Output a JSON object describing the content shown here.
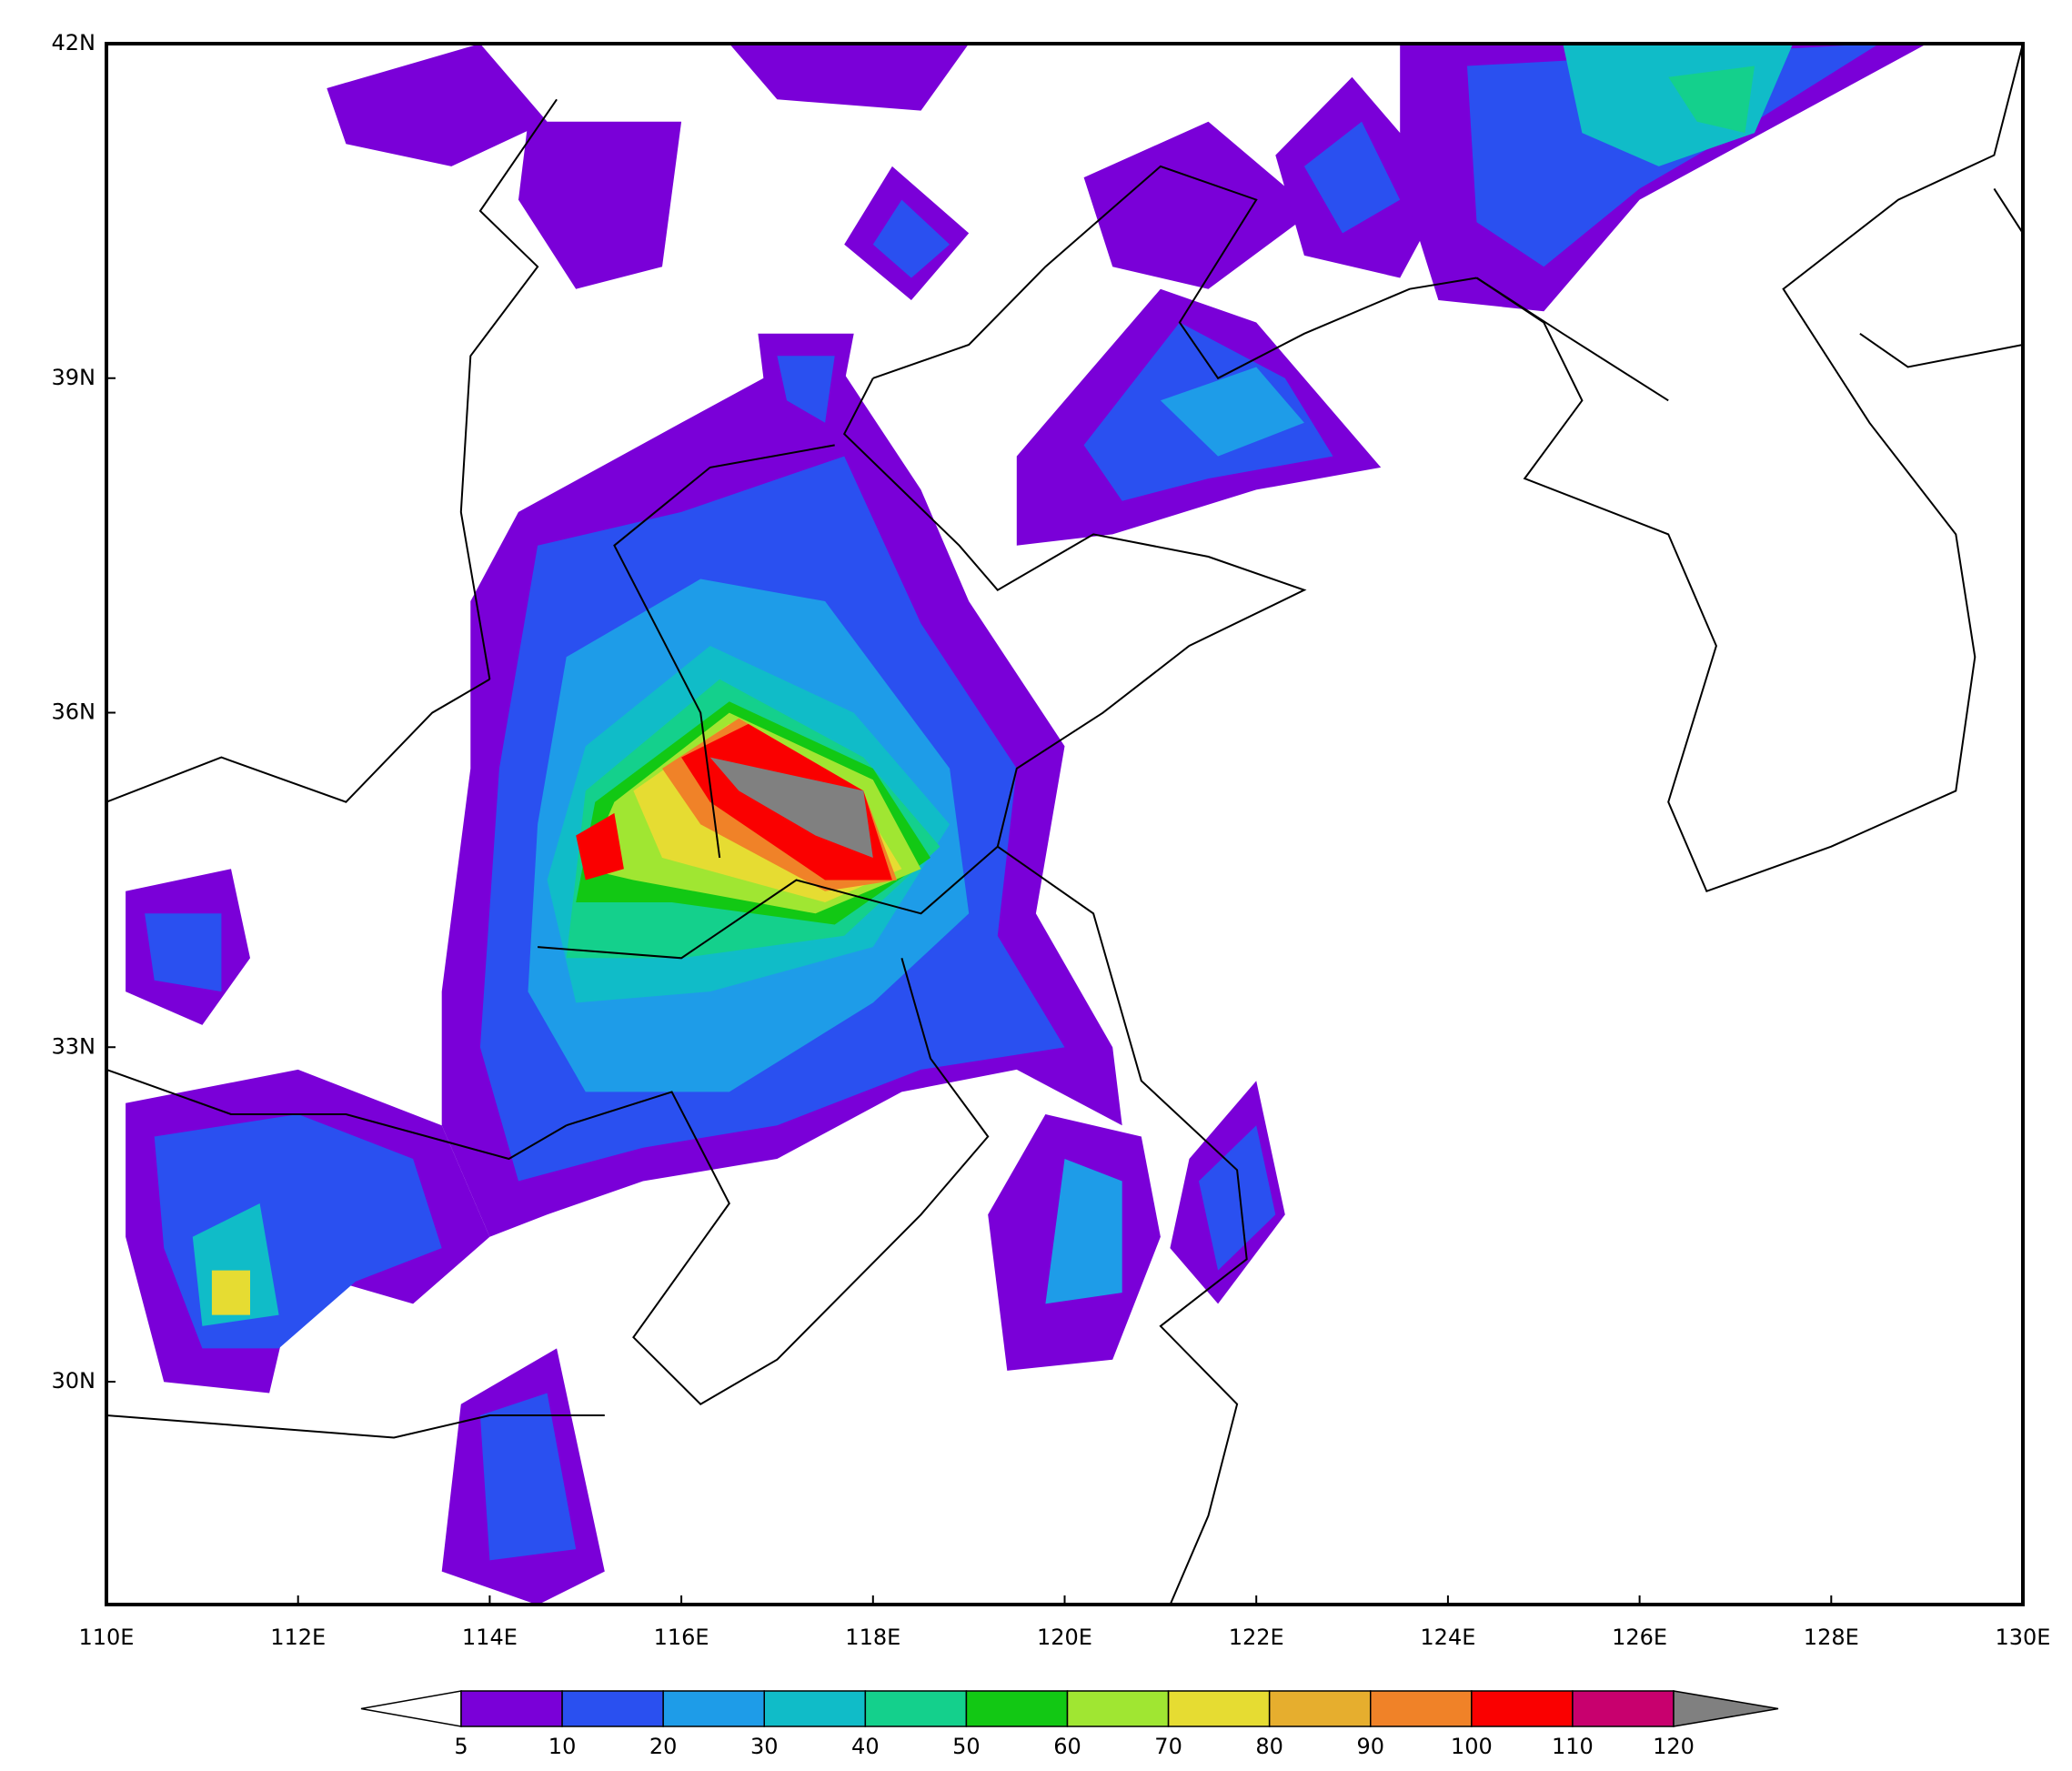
{
  "map": {
    "lon_labels": [
      "110E",
      "112E",
      "114E",
      "116E",
      "118E",
      "120E",
      "122E",
      "124E",
      "126E",
      "128E",
      "130E"
    ],
    "lat_labels": [
      "42N",
      "39N",
      "36N",
      "33N",
      "30N"
    ]
  },
  "colorbar": {
    "levels": [
      5,
      10,
      20,
      30,
      40,
      50,
      60,
      70,
      80,
      90,
      100,
      110,
      120
    ],
    "colors": [
      "#7a00d8",
      "#2a50f0",
      "#1e9ce8",
      "#10bcc8",
      "#14d08c",
      "#12c814",
      "#a0e632",
      "#e6dc32",
      "#e6ae2e",
      "#f08228",
      "#fa0000",
      "#c8006e",
      "#808080"
    ]
  }
}
